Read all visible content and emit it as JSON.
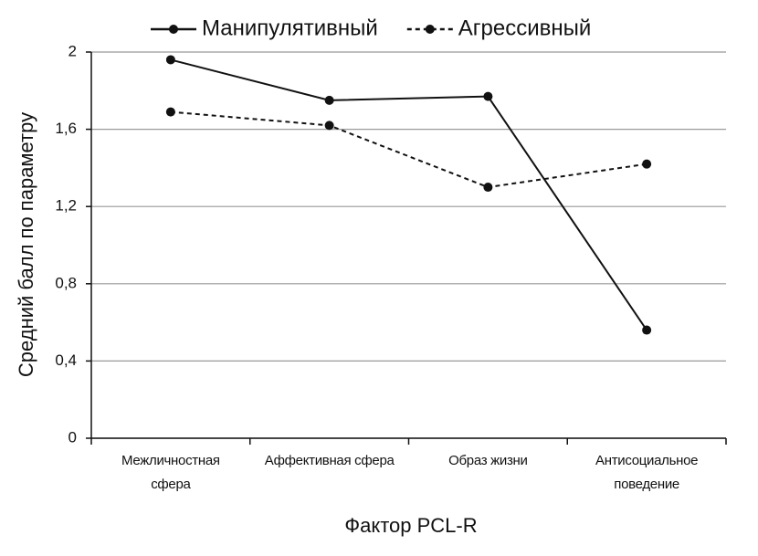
{
  "chart_data": {
    "type": "line",
    "x_label": "Фактор PCL-R",
    "y_label": "Средний балл по параметру",
    "categories": [
      "Межличностная\nсфера",
      "Аффективная сфера",
      "Образ жизни",
      "Антисоциальное\nповедение"
    ],
    "series": [
      {
        "name": "Манипулятивный",
        "color": "#111111",
        "dash": false,
        "values": [
          1.96,
          1.75,
          1.77,
          0.56
        ]
      },
      {
        "name": "Агрессивный",
        "color": "#111111",
        "dash": true,
        "values": [
          1.69,
          1.62,
          1.3,
          1.42
        ]
      }
    ],
    "ylim": [
      0,
      2
    ],
    "yticks": [
      0,
      {
        "value": 0.4,
        "label": "0,4"
      },
      {
        "value": 0.8,
        "label": "0,8"
      },
      {
        "value": 1.2,
        "label": "1,2"
      },
      {
        "value": 1.6,
        "label": "1,6"
      },
      2
    ],
    "grid": true
  }
}
